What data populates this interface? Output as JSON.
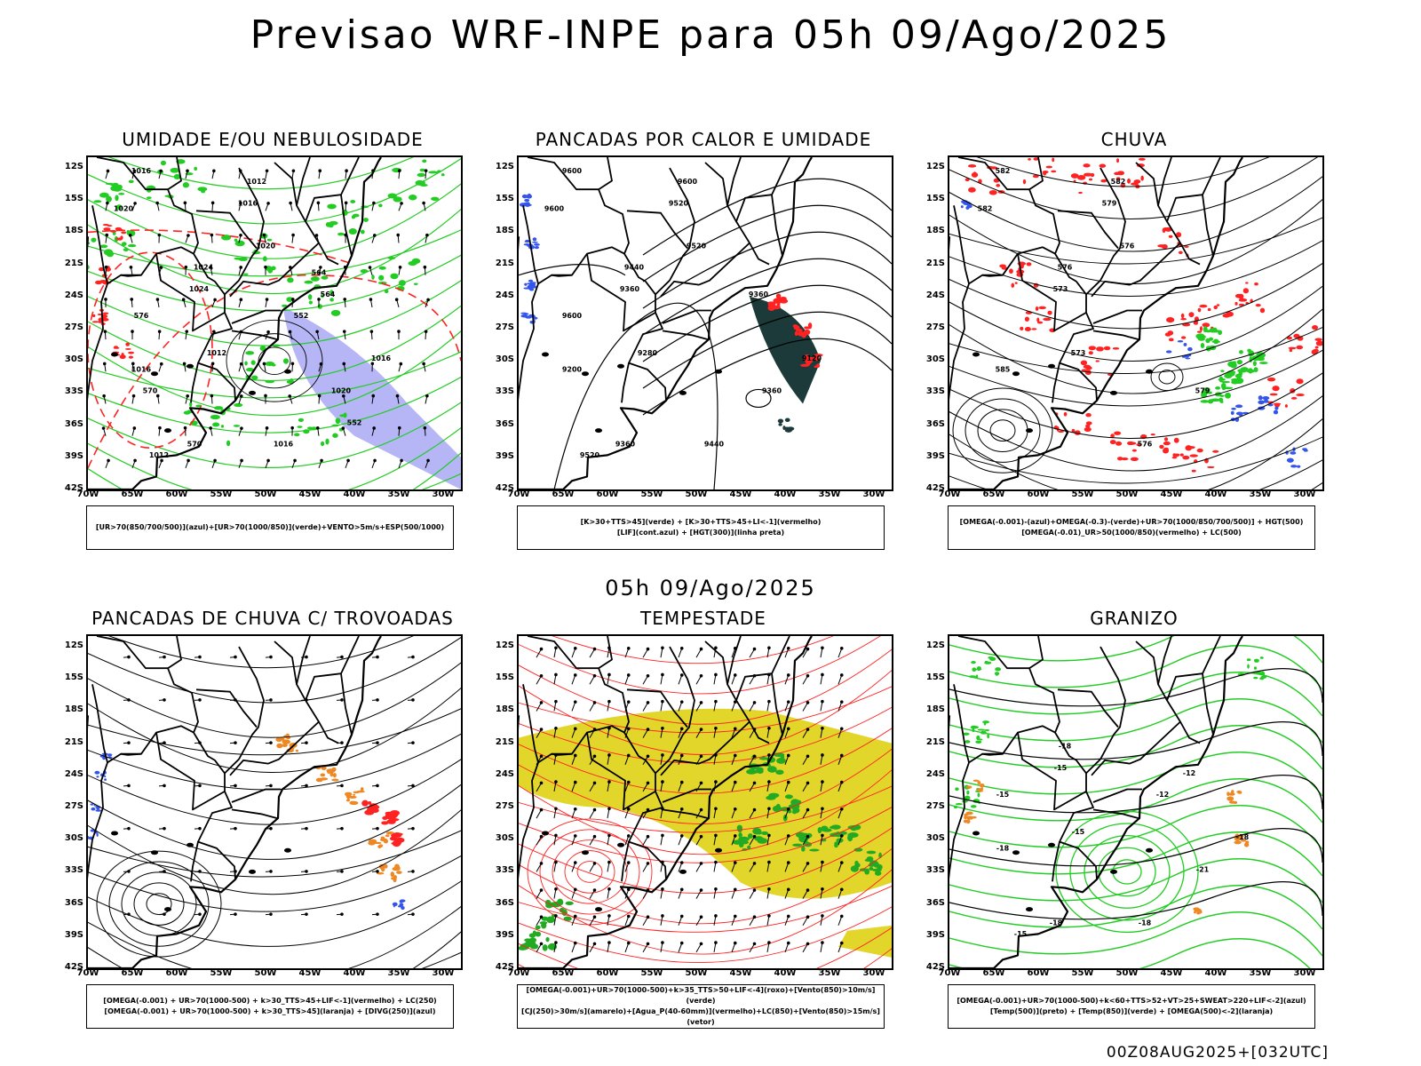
{
  "header": {
    "title": "Previsao WRF-INPE  para 05h 09/Ago/2025",
    "mid_title": "05h 09/Ago/2025",
    "footer": "00Z08AUG2025+[032UTC]"
  },
  "axes": {
    "lat_labels": [
      "12S",
      "15S",
      "18S",
      "21S",
      "24S",
      "27S",
      "30S",
      "33S",
      "36S",
      "39S",
      "42S"
    ],
    "lon_labels": [
      "70W",
      "65W",
      "60W",
      "55W",
      "50W",
      "45W",
      "40W",
      "35W",
      "30W"
    ]
  },
  "panels": [
    {
      "id": "umidade",
      "title": "UMIDADE E/OU NEBULOSIDADE",
      "legend_line1": "[UR>70(850/700/500)](azul)+[UR>70(1000/850)](verde)+VENTO>5m/s+ESP(500/1000)",
      "legend_line2": "",
      "contour_labels": [
        "1016",
        "1012",
        "1020",
        "1016",
        "1020",
        "1024",
        "1024",
        "1012",
        "1016",
        "1020",
        "1016",
        "1012",
        "1016",
        "570",
        "576",
        "564",
        "552",
        "552",
        "570",
        "564"
      ]
    },
    {
      "id": "pancadas-calor",
      "title": "PANCADAS POR CALOR E UMIDADE",
      "legend_line1": "[K>30+TTS>45](verde) + [K>30+TTS>45+LI<-1](vermelho)",
      "legend_line2": "[LIF](cont.azul) + [HGT(300)](linha preta)",
      "contour_labels": [
        "9600",
        "9600",
        "9600",
        "9520",
        "9520",
        "9440",
        "9360",
        "9280",
        "9200",
        "9360",
        "9440",
        "9520",
        "9120",
        "9360",
        "9600",
        "9360"
      ]
    },
    {
      "id": "chuva",
      "title": "CHUVA",
      "legend_line1": "[OMEGA(-0.001)-(azul)+OMEGA(-0.3)-(verde)+UR>70(1000/850/700/500)] + HGT(500)",
      "legend_line2": "[OMEGA(-0.01)_UR>50(1000/850)(vermelho) + LC(500)",
      "contour_labels": [
        "582",
        "582",
        "582",
        "579",
        "576",
        "576",
        "573",
        "573",
        "585",
        "579",
        "576"
      ]
    },
    {
      "id": "pancadas-trovoadas",
      "title": "PANCADAS DE CHUVA C/ TROVOADAS",
      "legend_line1": "[OMEGA(-0.001) + UR>70(1000-500) + k>30_TTS>45+LIF<-1](vermelho) + LC(250)",
      "legend_line2": "[OMEGA(-0.001) + UR>70(1000-500) + k>30_TTS>45](laranja) + [DIVG(250)](azul)",
      "contour_labels": []
    },
    {
      "id": "tempestade",
      "title": "TEMPESTADE",
      "legend_line1": "[OMEGA(-0.001)+UR>70(1000-500)+k>35_TTS>50+LIF<-4](roxo)+[Vento(850)>10m/s](verde)",
      "legend_line2": "[CJ(250)>30m/s](amarelo)+[Agua_P(40-60mm)](vermelho)+LC(850)+[Vento(850)>15m/s](vetor)",
      "contour_labels": []
    },
    {
      "id": "granizo",
      "title": "GRANIZO",
      "legend_line1": "[OMEGA(-0.001)+UR>70(1000-500)+k<60+TTS>52+VT>25+SWEAT>220+LIF<-2](azul)",
      "legend_line2": "[Temp(500)](preto) + [Temp(850)](verde) + [OMEGA(500)<-2](laranja)",
      "contour_labels": [
        "-18",
        "-15",
        "-15",
        "-18",
        "-21",
        "-18",
        "-15",
        "-18",
        "-18",
        "-15",
        "-12",
        "-12"
      ]
    }
  ],
  "colors": {
    "green": "#22cc22",
    "blue": "#3355ee",
    "red": "#ff2222",
    "orange": "#ee8822",
    "yellow": "#e2d62a",
    "purple": "#7a7af0",
    "dark": "#1c3a3a"
  }
}
